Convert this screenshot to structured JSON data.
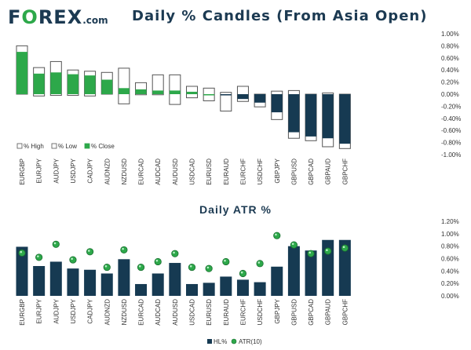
{
  "brand": {
    "name_part1": "F",
    "name_part2": "REX",
    "name_o": "O",
    "domain": ".com"
  },
  "chart_data": [
    {
      "type": "candlestick",
      "title": "Daily % Candles (From Asia Open)",
      "categories": [
        "EURGBP",
        "EURJPY",
        "AUDJPY",
        "USDJPY",
        "CADJPY",
        "AUDNZD",
        "NZDUSD",
        "EURCAD",
        "AUDCAD",
        "AUDUSD",
        "USDCAD",
        "EURUSD",
        "EURAUD",
        "EURCHF",
        "USDCHF",
        "GBPJPY",
        "GBPUSD",
        "GBPCAD",
        "GBPAUD",
        "GBPCHF"
      ],
      "high": [
        0.8,
        0.44,
        0.54,
        0.4,
        0.38,
        0.36,
        0.43,
        0.19,
        0.32,
        0.32,
        0.13,
        0.1,
        0.03,
        0.13,
        0.0,
        0.05,
        0.06,
        0.0,
        0.02,
        0.0
      ],
      "low": [
        0.0,
        -0.03,
        -0.02,
        -0.02,
        -0.03,
        0.0,
        -0.16,
        -0.01,
        -0.01,
        -0.17,
        -0.06,
        -0.11,
        -0.28,
        -0.12,
        -0.21,
        -0.42,
        -0.73,
        -0.77,
        -0.87,
        -0.9
      ],
      "close": [
        0.7,
        0.34,
        0.36,
        0.33,
        0.31,
        0.24,
        0.1,
        0.08,
        0.06,
        0.06,
        0.04,
        0.0,
        -0.02,
        -0.08,
        -0.14,
        -0.3,
        -0.63,
        -0.7,
        -0.73,
        -0.82
      ],
      "ylim": [
        -1.0,
        1.0
      ],
      "yticks": [
        "1.00%",
        "0.80%",
        "0.60%",
        "0.40%",
        "0.20%",
        "0.00%",
        "-0.20%",
        "-0.40%",
        "-0.60%",
        "-0.80%",
        "-1.00%"
      ],
      "ytick_values": [
        1.0,
        0.8,
        0.6,
        0.4,
        0.2,
        0.0,
        -0.2,
        -0.4,
        -0.6,
        -0.8,
        -1.0
      ],
      "legend": [
        "% High",
        "% Low",
        "% Close"
      ],
      "colors": {
        "positive": "#2da84a",
        "negative": "#163a52",
        "outline": "#555555"
      }
    },
    {
      "type": "bar",
      "title": "Daily ATR %",
      "categories": [
        "EURGBP",
        "EURJPY",
        "AUDJPY",
        "USDJPY",
        "CADJPY",
        "AUDNZD",
        "NZDUSD",
        "EURCAD",
        "AUDCAD",
        "AUDUSD",
        "USDCAD",
        "EURUSD",
        "EURAUD",
        "EURCHF",
        "USDCHF",
        "GBPJPY",
        "GBPUSD",
        "GBPCAD",
        "GBPAUD",
        "GBPCHF"
      ],
      "series": [
        {
          "name": "HL%",
          "kind": "bar",
          "values": [
            0.79,
            0.48,
            0.55,
            0.44,
            0.42,
            0.36,
            0.59,
            0.19,
            0.36,
            0.53,
            0.19,
            0.21,
            0.31,
            0.26,
            0.22,
            0.47,
            0.8,
            0.73,
            0.9,
            0.9
          ]
        },
        {
          "name": "ATR(10)",
          "kind": "marker",
          "values": [
            0.69,
            0.62,
            0.83,
            0.58,
            0.71,
            0.46,
            0.74,
            0.46,
            0.55,
            0.68,
            0.46,
            0.44,
            0.55,
            0.36,
            0.52,
            0.97,
            0.82,
            0.68,
            0.72,
            0.77
          ]
        }
      ],
      "ylim": [
        0.0,
        1.2
      ],
      "yticks": [
        "1.20%",
        "1.00%",
        "0.80%",
        "0.60%",
        "0.40%",
        "0.20%",
        "0.00%"
      ],
      "ytick_values": [
        1.2,
        1.0,
        0.8,
        0.6,
        0.4,
        0.2,
        0.0
      ],
      "legend": [
        "HL%",
        "ATR(10)"
      ],
      "colors": {
        "bar": "#163a52",
        "marker": "#2da84a"
      }
    }
  ]
}
